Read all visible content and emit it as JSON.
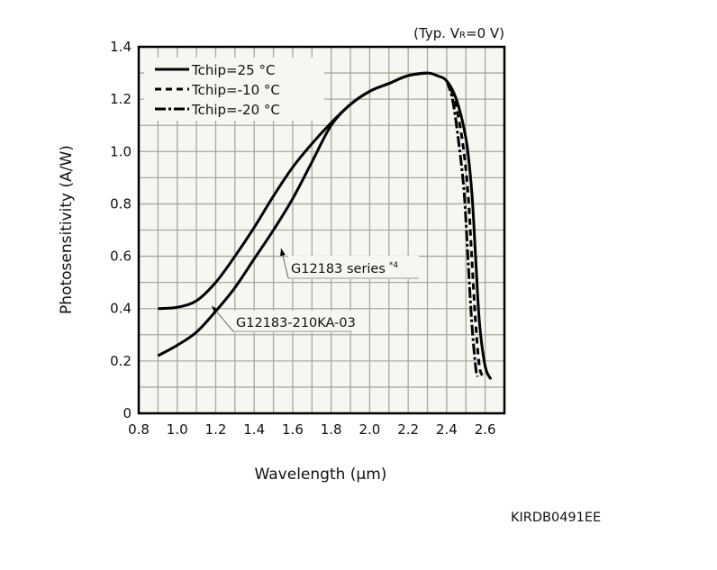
{
  "chart_data": {
    "type": "line",
    "title": "",
    "condition_note": "(Typ. V",
    "condition_sub": "R",
    "condition_tail": "=0 V)",
    "xlabel": "Wavelength (µm)",
    "ylabel": "Photosensitivity (A/W)",
    "xlim": [
      0.8,
      2.7
    ],
    "ylim": [
      0,
      1.4
    ],
    "grid": true,
    "x_minor_step": 0.1,
    "y_minor_step": 0.1,
    "xticks": [
      0.8,
      1.0,
      1.2,
      1.4,
      1.6,
      1.8,
      2.0,
      2.2,
      2.4,
      2.6
    ],
    "xtick_labels": [
      "0.8",
      "1.0",
      "1.2",
      "1.4",
      "1.6",
      "1.8",
      "2.0",
      "2.2",
      "2.4",
      "2.6"
    ],
    "yticks": [
      0,
      0.2,
      0.4,
      0.6,
      0.8,
      1.0,
      1.2,
      1.4
    ],
    "ytick_labels": [
      "0",
      "0.2",
      "0.4",
      "0.6",
      "0.8",
      "1.0",
      "1.2",
      "1.4"
    ],
    "legend_position": "top-left",
    "legend": [
      {
        "label": "Tchip=25 °C",
        "style": "solid"
      },
      {
        "label": "Tchip=-10 °C",
        "style": "dashed"
      },
      {
        "label": "Tchip=-20 °C",
        "style": "dashdot"
      }
    ],
    "series": [
      {
        "name": "G12183 series, Tchip=25 °C",
        "style": "solid",
        "x": [
          0.9,
          1.0,
          1.1,
          1.2,
          1.3,
          1.4,
          1.5,
          1.6,
          1.7,
          1.8,
          1.9,
          2.0,
          2.1,
          2.2,
          2.3,
          2.35,
          2.4,
          2.45,
          2.5,
          2.53,
          2.55,
          2.57,
          2.6,
          2.63
        ],
        "y": [
          0.4,
          0.405,
          0.43,
          0.5,
          0.6,
          0.71,
          0.83,
          0.94,
          1.03,
          1.11,
          1.18,
          1.23,
          1.26,
          1.29,
          1.3,
          1.29,
          1.27,
          1.2,
          1.05,
          0.85,
          0.6,
          0.35,
          0.18,
          0.13
        ]
      },
      {
        "name": "G12183-210KA-03, Tchip=25 °C",
        "style": "solid",
        "x": [
          0.9,
          1.0,
          1.1,
          1.2,
          1.3,
          1.4,
          1.5,
          1.6,
          1.7,
          1.8,
          1.9,
          2.0,
          2.1,
          2.2,
          2.3
        ],
        "y": [
          0.22,
          0.26,
          0.31,
          0.39,
          0.48,
          0.59,
          0.7,
          0.82,
          0.96,
          1.1,
          1.18,
          1.23,
          1.26,
          1.29,
          1.3
        ]
      },
      {
        "name": "Tchip=-10 °C",
        "style": "dashed",
        "x": [
          2.4,
          2.44,
          2.48,
          2.51,
          2.53,
          2.55,
          2.57,
          2.59
        ],
        "y": [
          1.27,
          1.2,
          1.05,
          0.85,
          0.6,
          0.35,
          0.18,
          0.14
        ]
      },
      {
        "name": "Tchip=-20 °C",
        "style": "dashdot",
        "x": [
          2.4,
          2.43,
          2.46,
          2.49,
          2.51,
          2.53,
          2.55,
          2.56
        ],
        "y": [
          1.27,
          1.2,
          1.05,
          0.85,
          0.6,
          0.35,
          0.18,
          0.14
        ]
      }
    ],
    "annotations": [
      {
        "text": "G12183 series",
        "superscript": "*4",
        "points_to": [
          1.54,
          0.63
        ]
      },
      {
        "text": "G12183-210KA-03",
        "points_to": [
          1.18,
          0.41
        ]
      }
    ],
    "figure_code": "KIRDB0491EE"
  }
}
